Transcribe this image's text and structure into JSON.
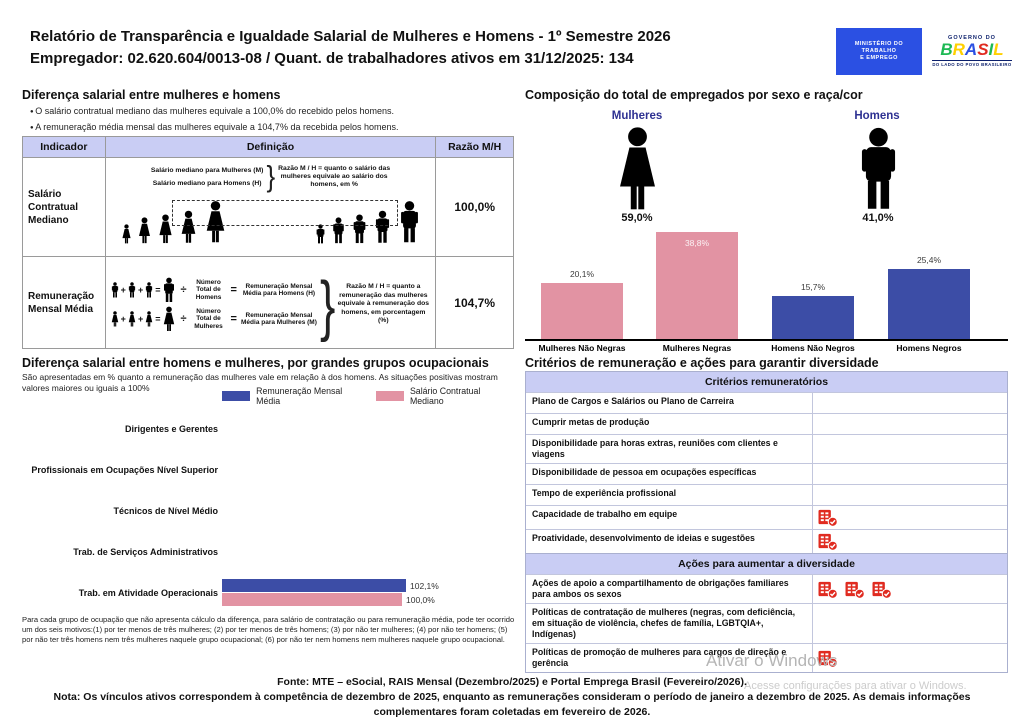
{
  "header": {
    "title_line1": "Relatório de Transparência e Igualdade Salarial de Mulheres e Homens - 1º Semestre 2026",
    "title_line2": "Empregador: 02.620.604/0013-08 / Quant. de trabalhadores ativos em 31/12/2025: 134",
    "logo_mte": {
      "line1": "MINISTÉRIO DO",
      "line2": "TRABALHO",
      "line3": "E EMPREGO"
    },
    "logo_gov": {
      "top": "GOVERNO DO",
      "brand": "BRASIL",
      "tagline": "DO LADO DO POVO BRASILEIRO"
    }
  },
  "pay_gap": {
    "heading": "Diferença salarial entre mulheres e homens",
    "bullets": [
      "O salário contratual mediano das mulheres equivale a 100,0% do recebido pelos homens.",
      "A remuneração média mensal das mulheres equivale a 104,7% da recebida pelos homens."
    ],
    "table": {
      "headers": [
        "Indicador",
        "Definição",
        "Razão M/H"
      ],
      "row1": {
        "indicator": "Salário Contratual Mediano",
        "def_line1": "Salário mediano para Mulheres (M)",
        "def_line2": "Salário mediano para Homens (H)",
        "note": "Razão M / H = quanto o salário das mulheres equivale ao salário dos homens, em %",
        "ratio": "100,0%"
      },
      "row2": {
        "indicator": "Remuneração Mensal Média",
        "men_divisor": "Número Total de Homens",
        "men_result": "Remuneração Mensal Média para Homens (H)",
        "women_divisor": "Número Total de Mulheres",
        "women_result": "Remuneração Mensal Média para Mulheres (M)",
        "note": "Razão M / H = quanto a remuneração das mulheres equivale à remuneração dos homens, em porcentagem (%)",
        "ratio": "104,7%",
        "plus": "+",
        "equals": "=",
        "divide": "÷"
      }
    }
  },
  "composition": {
    "heading": "Composição do total de empregados por sexo e raça/cor",
    "women_label": "Mulheres",
    "women_pct": "59,0%",
    "men_label": "Homens",
    "men_pct": "41,0%"
  },
  "occupations": {
    "heading": "Diferença salarial entre homens e mulheres, por grandes grupos ocupacionais",
    "subtitle": "São apresentadas em % quanto a remuneração das mulheres vale em relação à dos homens. As situações positivas mostram valores maiores ou iguais a 100%",
    "footnote": "Para cada grupo de ocupação que não apresenta cálculo da diferença, para salário de contratação ou para remuneração média, pode ter ocorrido um dos seis motivos:(1) por ter menos de três mulheres; (2) por ter menos de três homens; (3) por não ter mulheres; (4) por não ter homens; (5) por não ter três homens nem três mulheres naquele grupo ocupacional; (6) por não ter nem homens nem mulheres naquele grupo ocupacional."
  },
  "chart_data": [
    {
      "type": "bar",
      "title": "Composição do total de empregados por sexo e raça/cor",
      "categories": [
        "Mulheres Não Negras",
        "Mulheres Negras",
        "Homens Não Negros",
        "Homens Negros"
      ],
      "values": [
        20.1,
        38.8,
        15.7,
        25.4
      ],
      "labels": [
        "20,1%",
        "38,8%",
        "15,7%",
        "25,4%"
      ],
      "colors": [
        "#e293a3",
        "#e293a3",
        "#3c4da6",
        "#3c4da6"
      ],
      "label_inside": [
        false,
        true,
        false,
        false
      ],
      "totals": {
        "Mulheres": 59.0,
        "Homens": 41.0
      },
      "ylim": [
        0,
        40
      ],
      "grid": false,
      "legend_position": "none"
    },
    {
      "type": "bar",
      "orientation": "horizontal",
      "title": "Diferença salarial entre homens e mulheres, por grandes grupos ocupacionais",
      "categories": [
        "Dirigentes e Gerentes",
        "Profissionais em Ocupações Nível Superior",
        "Técnicos de Nível Médio",
        "Trab. de Serviços Administrativos",
        "Trab. em Atividade Operacionais"
      ],
      "series": [
        {
          "name": "Remuneração Mensal Média",
          "color": "#3c4da6",
          "values": [
            null,
            null,
            null,
            null,
            102.1
          ],
          "labels": [
            null,
            null,
            null,
            null,
            "102,1%"
          ]
        },
        {
          "name": "Salário Contratual Mediano",
          "color": "#e293a3",
          "values": [
            null,
            null,
            null,
            null,
            100.0
          ],
          "labels": [
            null,
            null,
            null,
            null,
            "100,0%"
          ]
        }
      ],
      "xlim": [
        0,
        110
      ],
      "grid": false,
      "legend_position": "top"
    }
  ],
  "diversity": {
    "heading": "Critérios de remuneração e ações para garantir diversidade",
    "section1_title": "Critérios remuneratórios",
    "criteria": [
      {
        "label": "Plano de Cargos e Salários ou Plano de Carreira",
        "icons": 0
      },
      {
        "label": "Cumprir metas de produção",
        "icons": 0
      },
      {
        "label": "Disponibilidade para horas extras, reuniões com clientes e viagens",
        "icons": 0
      },
      {
        "label": "Disponibilidade de pessoa em ocupações específicas",
        "icons": 0
      },
      {
        "label": "Tempo de experiência profissional",
        "icons": 0
      },
      {
        "label": "Capacidade de trabalho em equipe",
        "icons": 1
      },
      {
        "label": "Proatividade, desenvolvimento de ideias e sugestões",
        "icons": 1
      }
    ],
    "section2_title": "Ações para aumentar a diversidade",
    "actions": [
      {
        "label": "Ações de apoio a compartilhamento de obrigações familiares para ambos os sexos",
        "icons": 3
      },
      {
        "label": "Políticas de contratação de mulheres (negras, com deficiência, em situação de violência, chefes de família, LGBTQIA+, Indígenas)",
        "icons": 0
      },
      {
        "label": "Políticas de promoção de mulheres para cargos de direção e gerência",
        "icons": 1
      }
    ]
  },
  "footer": {
    "fonte": "Fonte: MTE – eSocial, RAIS Mensal (Dezembro/2025) e Portal Emprega Brasil (Fevereiro/2026).",
    "nota": "Nota: Os vínculos ativos correspondem à competência de dezembro de 2025, enquanto as remunerações consideram o período de janeiro a dezembro de 2025. As demais informações complementares foram coletadas em fevereiro de 2026."
  },
  "watermark": {
    "line1": "Ativar o Windows",
    "line2": "Acesse configurações para ativar o Windows."
  }
}
